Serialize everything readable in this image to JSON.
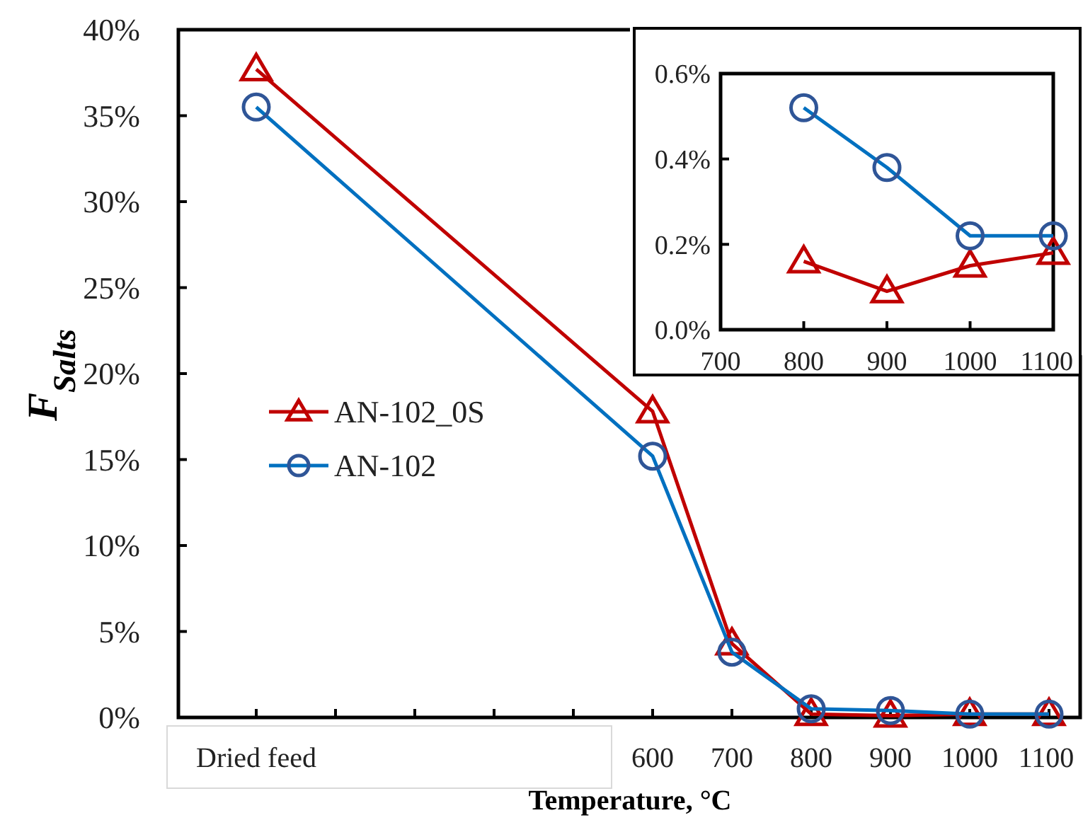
{
  "chart_data": [
    {
      "type": "line",
      "xlabel": "Temperature, °C",
      "ylabel": "F$_{Salts}$",
      "categories": [
        "Dried feed",
        null,
        null,
        null,
        null,
        "600",
        "700",
        "800",
        "900",
        "1000",
        "1100"
      ],
      "series": [
        {
          "name": "AN-102_0S",
          "color": "#c00000",
          "marker": "triangle",
          "values": [
            37.7,
            null,
            null,
            null,
            null,
            17.8,
            4.3,
            0.2,
            0.1,
            0.2,
            0.2
          ]
        },
        {
          "name": "AN-102",
          "color": "#0070c0",
          "marker": "circle",
          "values": [
            35.5,
            null,
            null,
            null,
            null,
            15.2,
            3.8,
            0.5,
            0.4,
            0.2,
            0.2
          ]
        }
      ],
      "ylim": [
        0,
        40
      ],
      "yticks": [
        {
          "value": 0,
          "label": "0%"
        },
        {
          "value": 5,
          "label": "5%"
        },
        {
          "value": 10,
          "label": "10%"
        },
        {
          "value": 15,
          "label": "15%"
        },
        {
          "value": 20,
          "label": "20%"
        },
        {
          "value": 25,
          "label": "25%"
        },
        {
          "value": 30,
          "label": "30%"
        },
        {
          "value": 35,
          "label": "35%"
        },
        {
          "value": 40,
          "label": "40%"
        }
      ],
      "grid": false,
      "legend": "left"
    },
    {
      "type": "line",
      "x": [
        800,
        900,
        1000,
        1100
      ],
      "series": [
        {
          "color": "#c00000",
          "marker": "triangle",
          "values": [
            0.16,
            0.09,
            0.15,
            0.18
          ]
        },
        {
          "color": "#0070c0",
          "marker": "circle",
          "values": [
            0.52,
            0.38,
            0.22,
            0.22
          ]
        }
      ],
      "xlim": [
        700,
        1100
      ],
      "xticks": [
        700,
        800,
        900,
        1000,
        1100
      ],
      "ylim": [
        0,
        0.6
      ],
      "yticks": [
        {
          "value": 0,
          "label": "0.0%"
        },
        {
          "value": 0.2,
          "label": "0.2%"
        },
        {
          "value": 0.4,
          "label": "0.4%"
        },
        {
          "value": 0.6,
          "label": "0.6%"
        }
      ],
      "grid": false
    }
  ]
}
